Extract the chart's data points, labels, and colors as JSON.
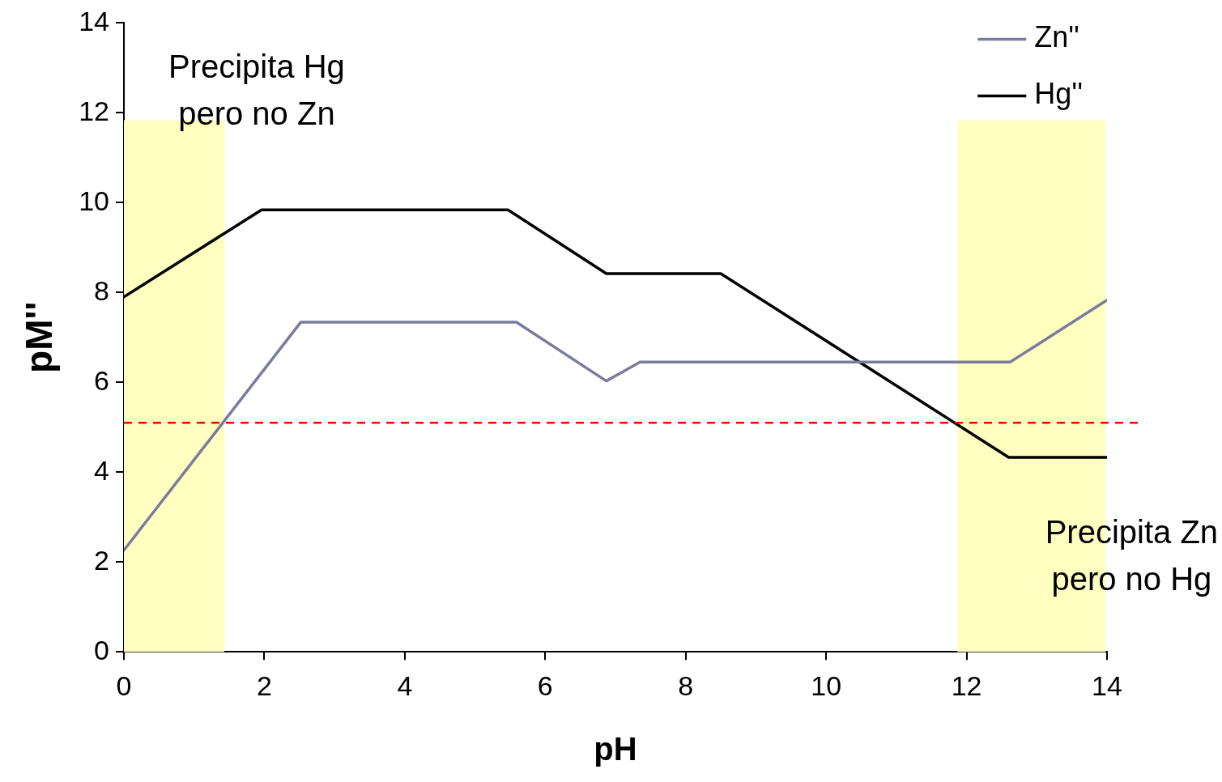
{
  "chart_data": {
    "type": "line",
    "xlabel": "pH",
    "ylabel": "pM''",
    "xlim": [
      0,
      14
    ],
    "xticks": [
      0,
      2,
      4,
      6,
      8,
      10,
      12,
      14
    ],
    "ylim": [
      0,
      14
    ],
    "yticks": [
      0,
      2,
      4,
      6,
      8,
      10,
      12,
      14
    ],
    "series": [
      {
        "name": "Zn''",
        "color": "#7b7b9e",
        "x": [
          0,
          2.52,
          5.59,
          6.87,
          7.35,
          12.62,
          14
        ],
        "values": [
          2.26,
          7.34,
          7.34,
          6.03,
          6.45,
          6.45,
          7.83
        ]
      },
      {
        "name": "Hg''",
        "color": "#000000",
        "x": [
          0,
          1.96,
          5.47,
          6.87,
          8.5,
          12.6,
          14
        ],
        "values": [
          7.9,
          9.84,
          9.84,
          8.42,
          8.42,
          4.33,
          4.33
        ]
      }
    ],
    "ref_lines": [
      {
        "axis": "y",
        "value": 5.1,
        "color": "#ff0000",
        "line_style": "dashed"
      }
    ],
    "bands": [
      {
        "axis": "x",
        "from": 0,
        "to": 1.43,
        "color": "#ffffc0"
      },
      {
        "axis": "x",
        "from": 11.87,
        "to": 13.98,
        "color": "#ffffc0"
      }
    ],
    "annotations": [
      "Precipita Hg\npero no Zn",
      "Precipita Zn\npero no Hg"
    ],
    "grid": false,
    "legend": "top right",
    "marker": "none",
    "line_style": "solid"
  }
}
